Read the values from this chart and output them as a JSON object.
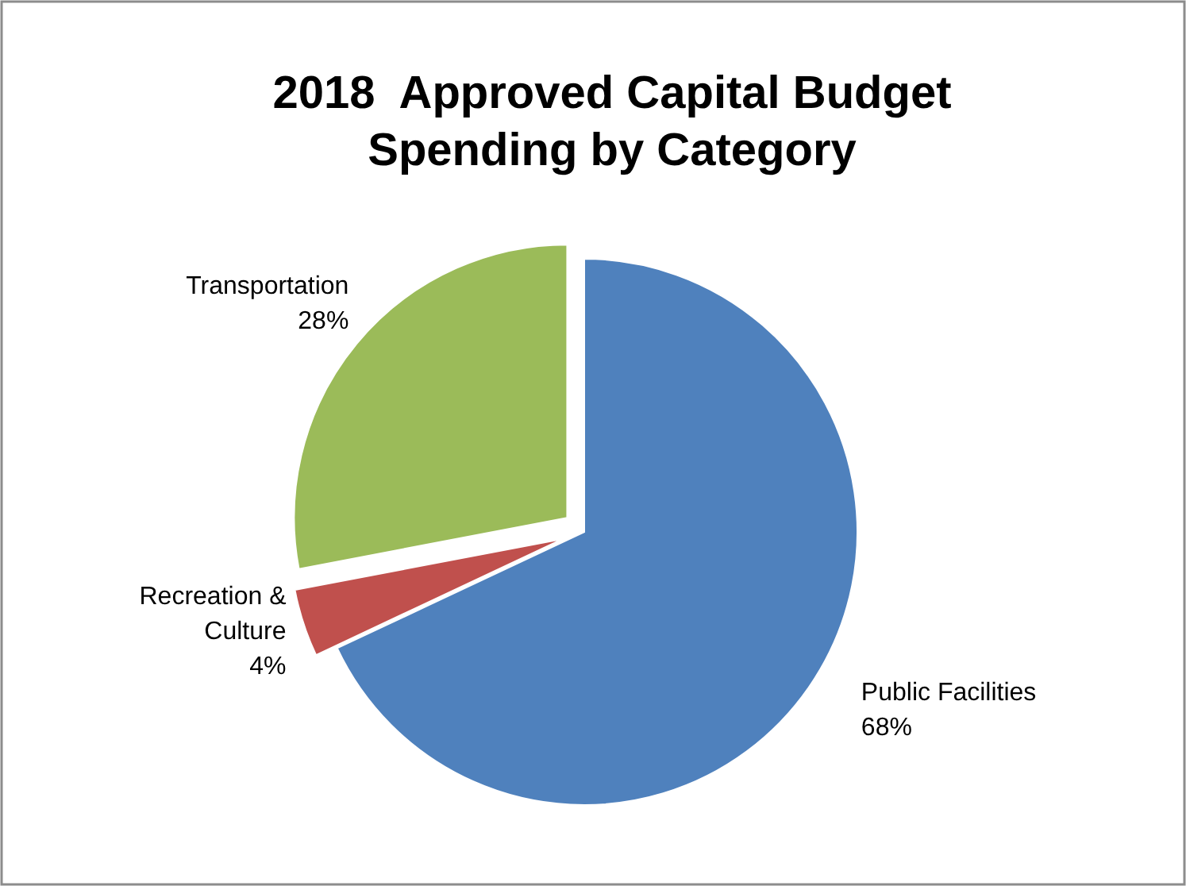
{
  "chart_data": {
    "type": "pie",
    "title": "2018  Approved Capital Budget\nSpending by Category",
    "categories": [
      "Public Facilities",
      "Recreation & Culture",
      "Transportation"
    ],
    "values": [
      68,
      4,
      28
    ],
    "colors": [
      "#4f81bd",
      "#c0504d",
      "#9bbb59"
    ],
    "value_labels": [
      "68%",
      "4%",
      "28%"
    ],
    "legend": false
  }
}
